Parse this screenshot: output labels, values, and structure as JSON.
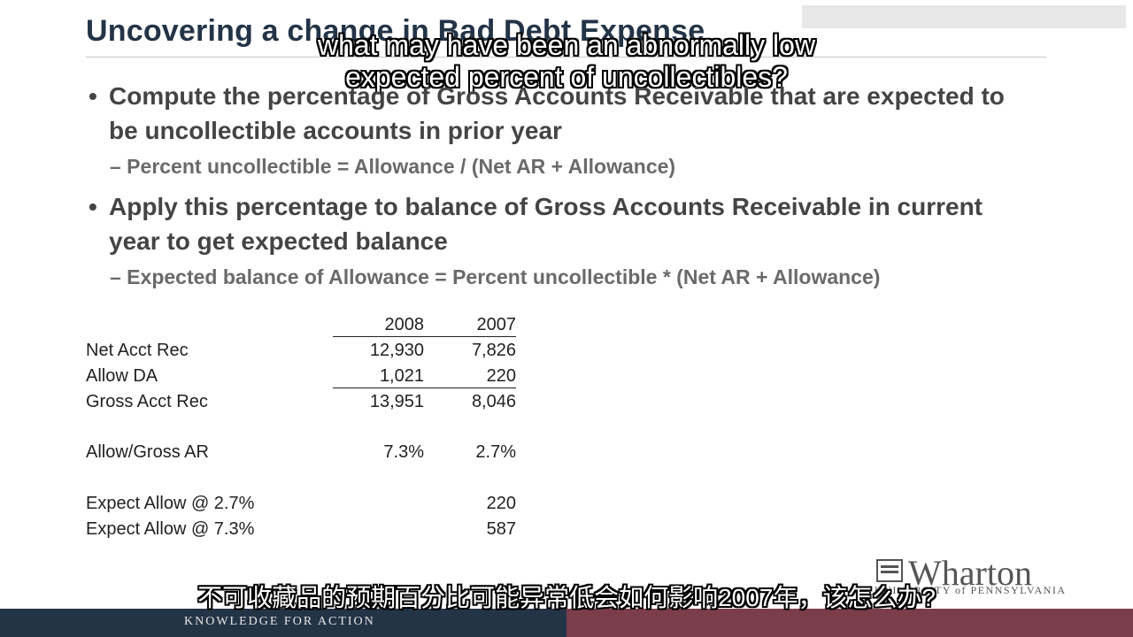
{
  "slide": {
    "title": "Uncovering a change in Bad Debt Expense",
    "bullets": [
      {
        "text": "Compute the percentage of Gross Accounts Receivable that are expected to be uncollectible accounts in prior year",
        "sub": "– Percent uncollectible = Allowance / (Net AR + Allowance)"
      },
      {
        "text": "Apply this percentage to balance of Gross Accounts Receivable in current year to get expected balance",
        "sub": "– Expected balance of Allowance = Percent uncollectible * (Net AR + Allowance)"
      }
    ],
    "table": {
      "headers": [
        "2008",
        "2007"
      ],
      "rows": [
        {
          "label": "Net Acct Rec",
          "v2008": "12,930",
          "v2007": "7,826"
        },
        {
          "label": "Allow DA",
          "v2008": "1,021",
          "v2007": "220"
        },
        {
          "label": "Gross Acct Rec",
          "v2008": "13,951",
          "v2007": "8,046"
        },
        {
          "label": "Allow/Gross AR",
          "v2008": "7.3%",
          "v2007": "2.7%"
        },
        {
          "label": "Expect Allow @ 2.7%",
          "v2008": "",
          "v2007": "220"
        },
        {
          "label": "Expect Allow @ 7.3%",
          "v2008": "",
          "v2007": "587"
        }
      ]
    }
  },
  "branding": {
    "logo_word": "Wharton",
    "logo_sub": "UNIVERSITY of PENNSYLVANIA",
    "tagline": "KNOWLEDGE FOR ACTION"
  },
  "captions": {
    "top_line1": "what may have been an abnormally low",
    "top_line2": "expected percent of uncollectibles?",
    "bottom": "不可收藏品的预期百分比可能异常低会如何影响2007年，该怎么办?"
  },
  "colors": {
    "title": "#243447",
    "footer_left": "#243447",
    "footer_right": "#7b3d4a"
  }
}
